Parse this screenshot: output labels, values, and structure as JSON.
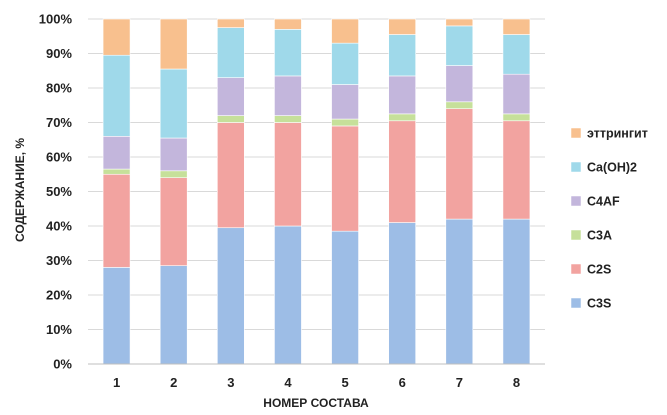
{
  "chart_data": {
    "type": "bar",
    "stacked": true,
    "percent": true,
    "title": "",
    "xlabel": "НОМЕР СОСТАВА",
    "ylabel": "СОДЕРЖАНИЕ, %",
    "ylim": [
      0,
      100
    ],
    "yticks": [
      "0%",
      "10%",
      "20%",
      "30%",
      "40%",
      "50%",
      "60%",
      "70%",
      "80%",
      "90%",
      "100%"
    ],
    "categories": [
      "1",
      "2",
      "3",
      "4",
      "5",
      "6",
      "7",
      "8"
    ],
    "grid": true,
    "legend_position": "right",
    "series": [
      {
        "name": "C3S",
        "color": "#9dbde6",
        "values": [
          28,
          28.5,
          39.5,
          40,
          38.5,
          41,
          42,
          42
        ]
      },
      {
        "name": "C2S",
        "color": "#f2a3a0",
        "values": [
          27,
          25.5,
          30.5,
          30,
          30.5,
          29.5,
          32,
          28.5
        ]
      },
      {
        "name": "C3A",
        "color": "#c6e09a",
        "values": [
          1.5,
          2,
          2,
          2,
          2,
          2,
          2,
          2
        ]
      },
      {
        "name": "C4AF",
        "color": "#c3b6dc",
        "values": [
          9.5,
          9.5,
          11,
          11.5,
          10,
          11,
          10.5,
          11.5
        ]
      },
      {
        "name": "Ca(OH)2",
        "color": "#9fd9ea",
        "values": [
          23.5,
          20,
          14.5,
          13.5,
          12,
          12,
          11.5,
          11.5
        ]
      },
      {
        "name": "эттрингит",
        "color": "#f8c08e",
        "values": [
          10.5,
          14.5,
          2.5,
          3,
          7,
          4.5,
          2,
          4.5
        ]
      }
    ]
  }
}
